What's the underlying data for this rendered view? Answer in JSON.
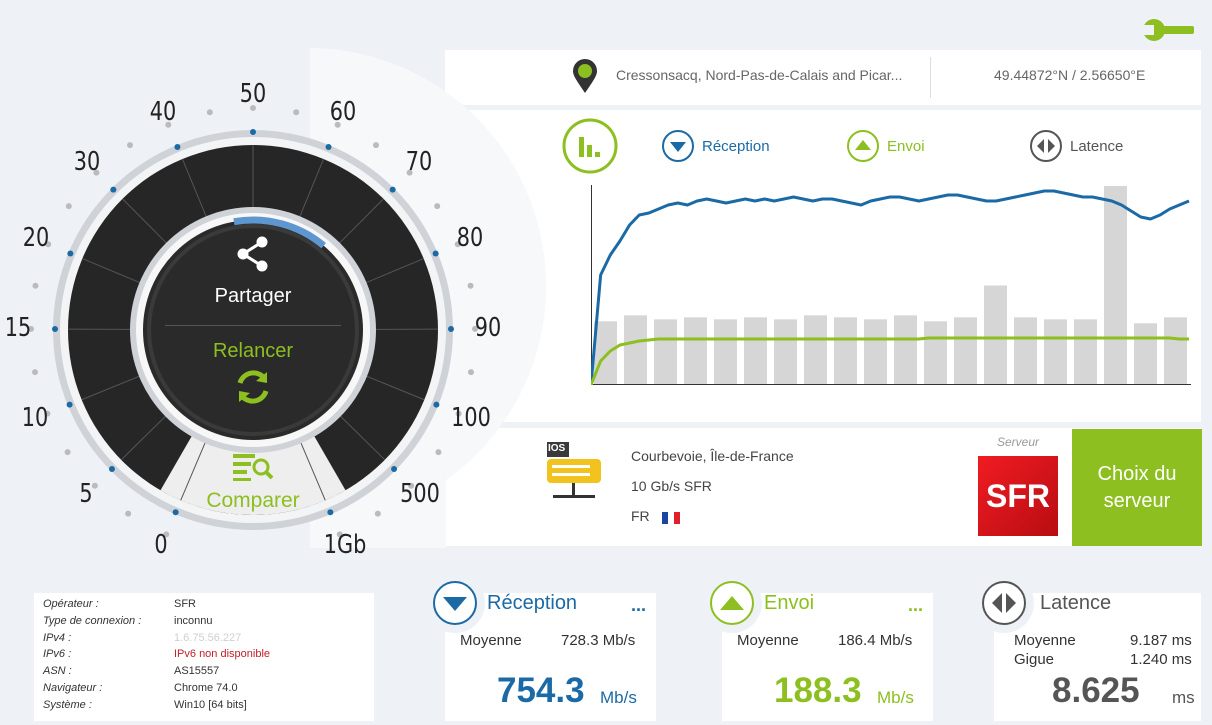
{
  "location": {
    "city": "Cressonsacq, Nord-Pas-de-Calais and Picar...",
    "coords": "49.44872°N / 2.56650°E"
  },
  "legend": {
    "reception": "Réception",
    "envoi": "Envoi",
    "latence": "Latence"
  },
  "gauge": {
    "labels": [
      "0",
      "5",
      "10",
      "15",
      "20",
      "30",
      "40",
      "50",
      "60",
      "70",
      "80",
      "90",
      "100",
      "500",
      "1Gb"
    ],
    "share_label": "Partager",
    "restart_label": "Relancer",
    "compare_label": "Comparer"
  },
  "server": {
    "label": "Serveur",
    "city": "Courbevoie, Île-de-France",
    "network": "10 Gb/s SFR",
    "country": "FR",
    "provider_logo": "SFR",
    "choose_button": "Choix du serveur",
    "ios_tag": "IOS"
  },
  "connection_info": {
    "rows": [
      {
        "label": "Opérateur :",
        "value": "SFR"
      },
      {
        "label": "Type de connexion :",
        "value": "inconnu"
      },
      {
        "label": "IPv4 :",
        "value": "1.6.75.56.227"
      },
      {
        "label": "IPv6 :",
        "value": "IPv6 non disponible"
      },
      {
        "label": "ASN :",
        "value": "AS15557"
      },
      {
        "label": "Navigateur :",
        "value": "Chrome 74.0"
      },
      {
        "label": "Système :",
        "value": "Win10 [64 bits]"
      }
    ]
  },
  "results": {
    "reception": {
      "title": "Réception",
      "avg_label": "Moyenne",
      "avg_value": "728.3 Mb/s",
      "value": "754.3",
      "unit": "Mb/s",
      "more": "..."
    },
    "envoi": {
      "title": "Envoi",
      "avg_label": "Moyenne",
      "avg_value": "186.4 Mb/s",
      "value": "188.3",
      "unit": "Mb/s",
      "more": "..."
    },
    "latence": {
      "title": "Latence",
      "avg_label": "Moyenne",
      "avg_value": "9.187 ms",
      "jitter_label": "Gigue",
      "jitter_value": "1.240 ms",
      "value": "8.625",
      "unit": "ms"
    }
  },
  "colors": {
    "accent_green": "#8cbf1f",
    "accent_blue": "#1b6aa5",
    "sfr_red": "#d8141a",
    "dial_dark": "#262626"
  },
  "chart_data": {
    "type": "line",
    "series": [
      {
        "name": "Réception",
        "color": "#1b6aa5",
        "values": [
          0,
          55,
          65,
          72,
          80,
          85,
          86,
          88,
          90,
          91,
          90,
          92,
          93,
          92,
          91,
          92,
          93,
          92,
          93,
          92,
          93,
          94,
          93,
          92,
          93,
          93,
          92,
          91,
          90,
          92,
          93,
          94,
          94,
          93,
          92,
          93,
          94,
          95,
          95,
          94,
          93,
          92,
          92,
          93,
          94,
          95,
          96,
          97,
          97,
          96,
          95,
          94,
          94,
          93,
          92,
          90,
          87,
          84,
          83,
          85,
          88,
          90,
          92
        ]
      },
      {
        "name": "Envoi",
        "color": "#8cbf1f",
        "values": [
          0,
          12,
          17,
          20,
          21,
          22,
          22.5,
          23,
          23,
          23,
          23,
          23,
          23,
          23,
          23,
          23,
          23,
          23,
          23,
          23,
          23,
          23,
          23,
          23,
          23,
          23,
          23,
          23,
          23,
          23,
          23,
          23,
          23,
          23,
          23,
          23.5,
          23.5,
          23.5,
          23.5,
          23.5,
          23.5,
          23.5,
          23.5,
          23.5,
          23.5,
          23.5,
          23.5,
          23.5,
          23.5,
          23.5,
          23.5,
          23.5,
          23.5,
          23.5,
          23.5,
          23.5,
          23.5,
          23.5,
          23.5,
          23.5,
          23.5,
          23,
          23
        ]
      },
      {
        "name": "Latence",
        "color": "#d6d6d6",
        "values": [
          32,
          35,
          33,
          34,
          33,
          34,
          33,
          35,
          34,
          33,
          35,
          32,
          34,
          50,
          34,
          33,
          33,
          100,
          31,
          34
        ]
      }
    ]
  }
}
